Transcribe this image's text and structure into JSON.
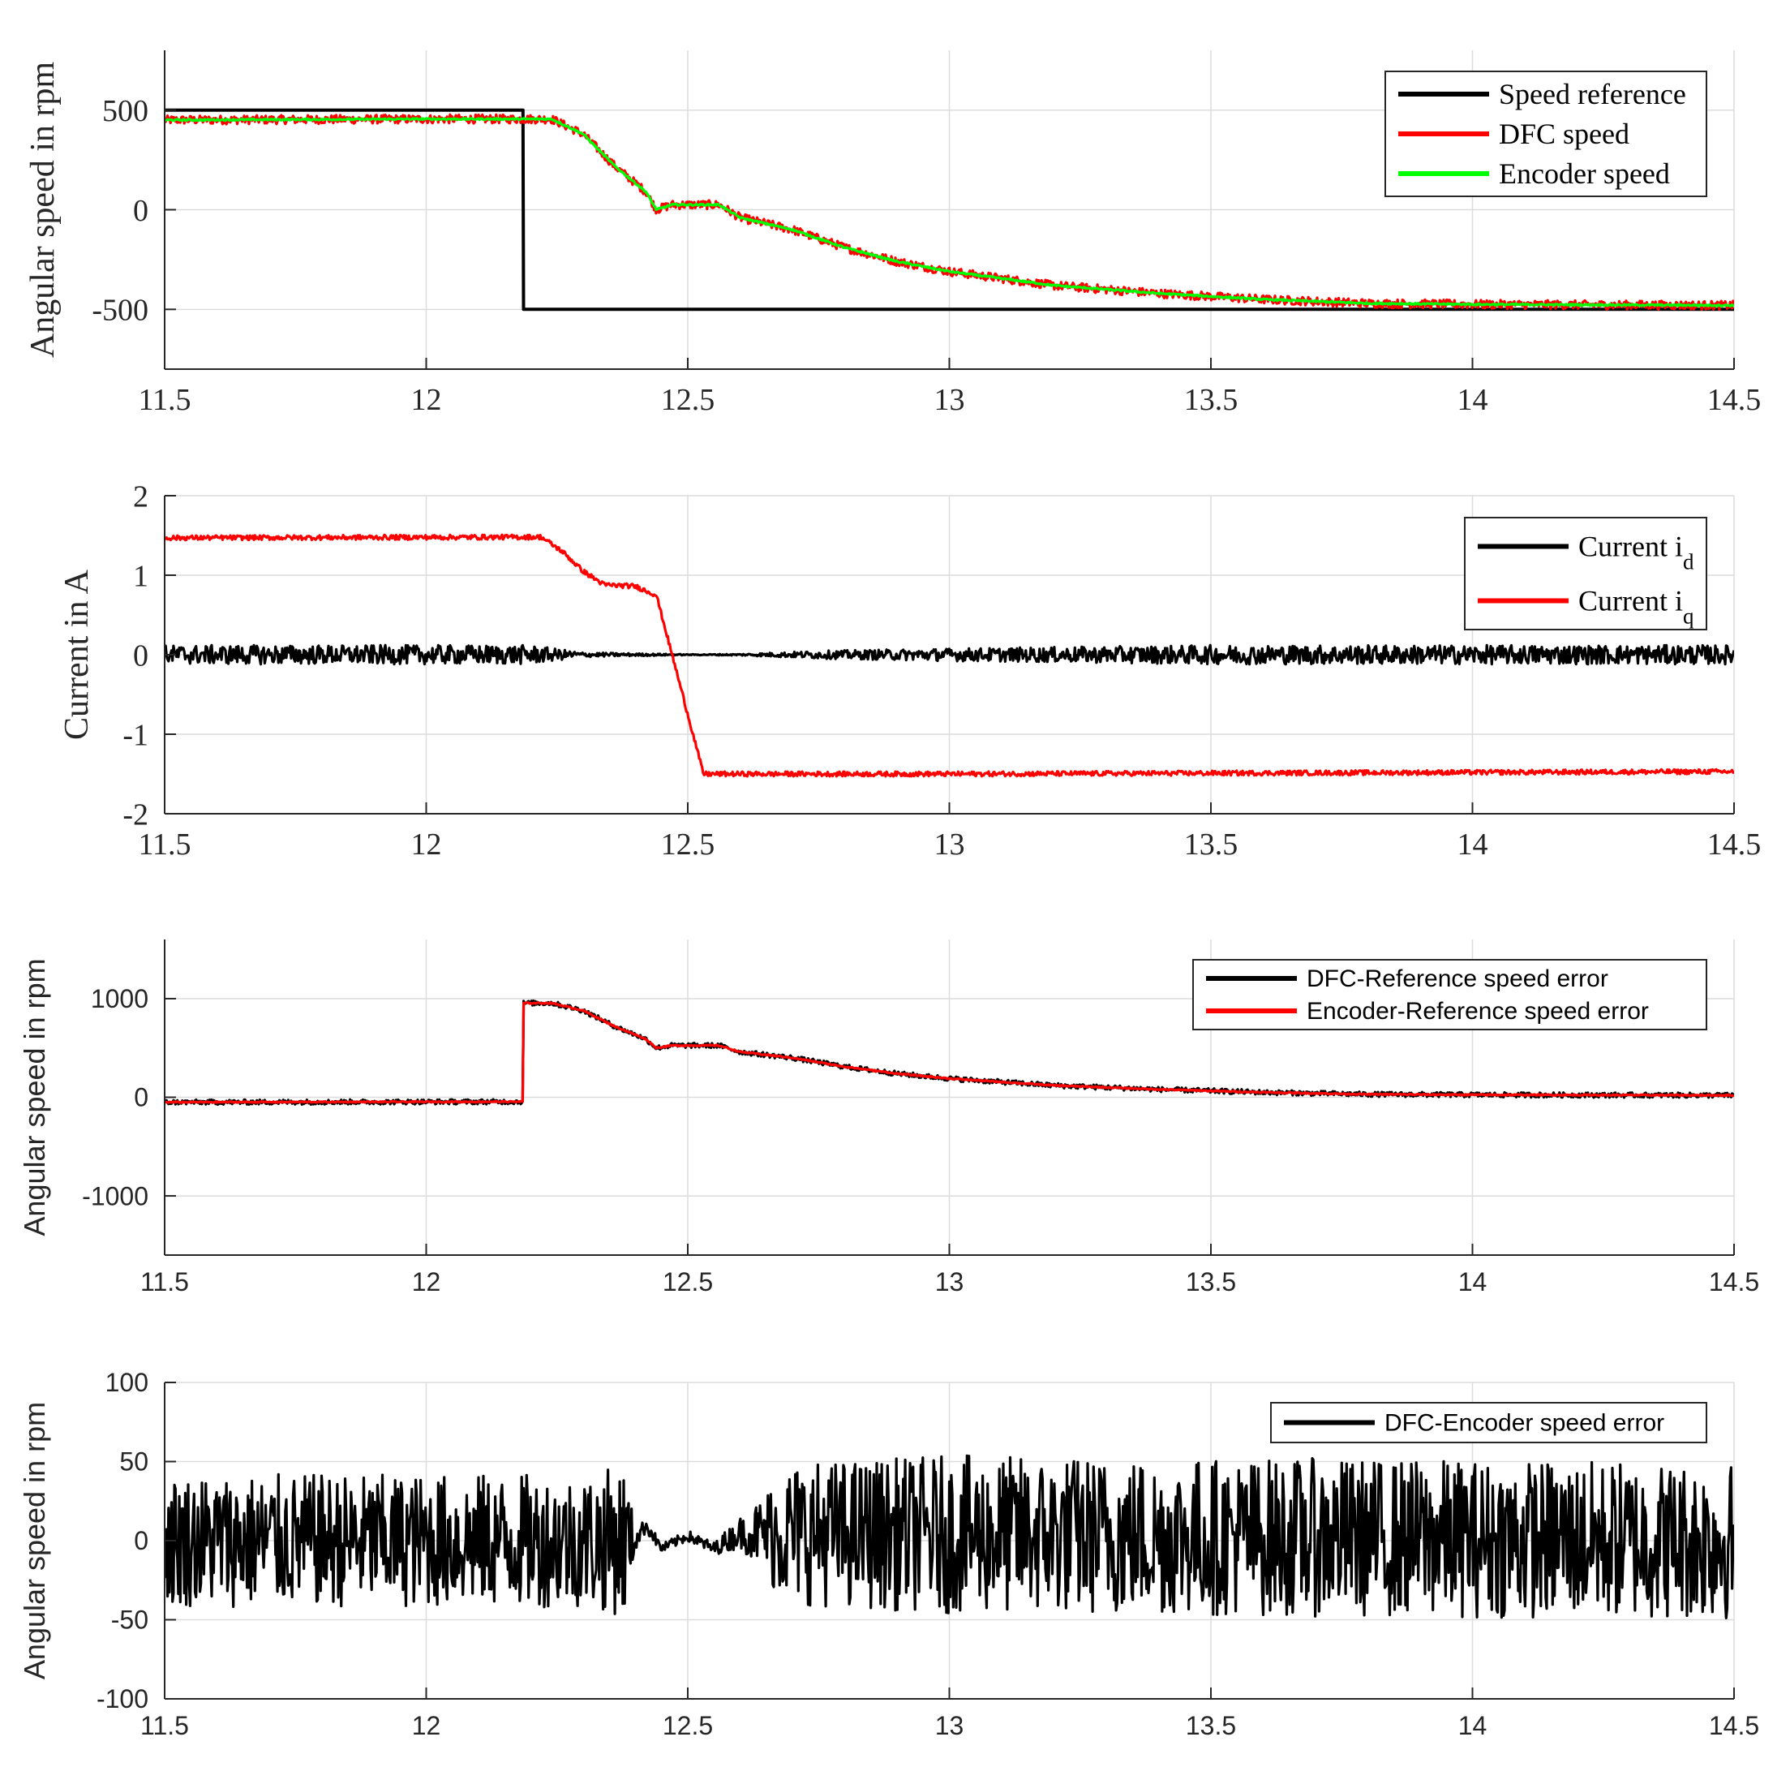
{
  "chart_data": [
    {
      "type": "line",
      "title": "",
      "xlabel": "",
      "ylabel": "Angular speed in rpm",
      "font": "serif",
      "xlim": [
        11.5,
        14.5
      ],
      "ylim": [
        -800,
        800
      ],
      "xticks": [
        11.5,
        12,
        12.5,
        13,
        13.5,
        14,
        14.5
      ],
      "xtick_labels": [
        "11.5",
        "12",
        "12.5",
        "13",
        "13.5",
        "14",
        "14.5"
      ],
      "yticks": [
        -500,
        0,
        500
      ],
      "ytick_labels": [
        "-500",
        "0",
        "500"
      ],
      "grid": true,
      "legend_position": "top-right",
      "series": [
        {
          "name": "Speed reference",
          "color": "#000000",
          "noise": 0,
          "x": [
            11.5,
            12.185,
            12.186,
            14.5
          ],
          "y": [
            500,
            500,
            -500,
            -500
          ]
        },
        {
          "name": "DFC speed",
          "color": "#ff0000",
          "noise": 22,
          "x": [
            11.5,
            12.0,
            12.24,
            12.3,
            12.36,
            12.42,
            12.44,
            12.47,
            12.56,
            12.6,
            12.7,
            12.8,
            12.9,
            13.0,
            13.2,
            13.4,
            13.6,
            13.8,
            14.0,
            14.5
          ],
          "y": [
            450,
            455,
            455,
            380,
            220,
            90,
            0,
            25,
            25,
            -40,
            -100,
            -190,
            -260,
            -310,
            -380,
            -420,
            -450,
            -470,
            -475,
            -480
          ]
        },
        {
          "name": "Encoder speed",
          "color": "#00ff00",
          "noise": 4,
          "x": [
            11.5,
            12.0,
            12.24,
            12.3,
            12.36,
            12.42,
            12.44,
            12.47,
            12.56,
            12.6,
            12.7,
            12.8,
            12.9,
            13.0,
            13.2,
            13.4,
            13.6,
            13.8,
            14.0,
            14.5
          ],
          "y": [
            450,
            455,
            455,
            380,
            220,
            90,
            0,
            25,
            25,
            -40,
            -100,
            -190,
            -260,
            -310,
            -380,
            -420,
            -450,
            -470,
            -475,
            -480
          ]
        }
      ]
    },
    {
      "type": "line",
      "title": "",
      "xlabel": "",
      "ylabel": "Current in A",
      "font": "serif",
      "xlim": [
        11.5,
        14.5
      ],
      "ylim": [
        -2,
        2
      ],
      "xticks": [
        11.5,
        12,
        12.5,
        13,
        13.5,
        14,
        14.5
      ],
      "xtick_labels": [
        "11.5",
        "12",
        "12.5",
        "13",
        "13.5",
        "14",
        "14.5"
      ],
      "yticks": [
        -2,
        -1,
        0,
        1,
        2
      ],
      "ytick_labels": [
        "-2",
        "-1",
        "0",
        "1",
        "2"
      ],
      "grid": true,
      "legend_position": "top-right",
      "series": [
        {
          "name": "Current i",
          "name_subscript": "d",
          "color": "#000000",
          "noise": 0.12,
          "noise_x": [
            11.5,
            12.2,
            12.3,
            12.5,
            12.6,
            12.75,
            13.0,
            13.5,
            14.5
          ],
          "noise_amp": [
            0.12,
            0.12,
            0.03,
            0.005,
            0.01,
            0.05,
            0.08,
            0.12,
            0.12
          ],
          "x": [
            11.5,
            14.5
          ],
          "y": [
            0,
            0
          ]
        },
        {
          "name": "Current i",
          "name_subscript": "q",
          "color": "#ff0000",
          "noise": 0.03,
          "x": [
            11.5,
            12.22,
            12.26,
            12.3,
            12.34,
            12.4,
            12.44,
            12.53,
            12.6,
            13.0,
            14.5
          ],
          "y": [
            1.47,
            1.48,
            1.3,
            1.05,
            0.88,
            0.86,
            0.75,
            -1.5,
            -1.5,
            -1.5,
            -1.47
          ]
        }
      ]
    },
    {
      "type": "line",
      "title": "",
      "xlabel": "",
      "ylabel": "Angular speed in rpm",
      "font": "sans",
      "xlim": [
        11.5,
        14.5
      ],
      "ylim": [
        -1600,
        1600
      ],
      "xticks": [
        11.5,
        12,
        12.5,
        13,
        13.5,
        14,
        14.5
      ],
      "xtick_labels": [
        "11.5",
        "12",
        "12.5",
        "13",
        "13.5",
        "14",
        "14.5"
      ],
      "yticks": [
        -1000,
        0,
        1000
      ],
      "ytick_labels": [
        "-1000",
        "0",
        "1000"
      ],
      "grid": true,
      "legend_position": "top-right",
      "series": [
        {
          "name": "DFC-Reference speed error",
          "color": "#000000",
          "noise": 25,
          "x": [
            11.5,
            12.185,
            12.186,
            12.24,
            12.3,
            12.36,
            12.42,
            12.44,
            12.47,
            12.56,
            12.6,
            12.7,
            12.8,
            12.9,
            13.0,
            13.2,
            13.4,
            13.6,
            13.8,
            14.0,
            14.5
          ],
          "y": [
            -50,
            -45,
            955,
            955,
            880,
            720,
            590,
            500,
            525,
            525,
            460,
            400,
            310,
            240,
            190,
            120,
            80,
            50,
            30,
            25,
            20
          ]
        },
        {
          "name": "Encoder-Reference speed error",
          "color": "#ff0000",
          "noise": 6,
          "x": [
            11.5,
            12.185,
            12.186,
            12.24,
            12.3,
            12.36,
            12.42,
            12.44,
            12.47,
            12.56,
            12.6,
            12.7,
            12.8,
            12.9,
            13.0,
            13.2,
            13.4,
            13.6,
            13.8,
            14.0,
            14.5
          ],
          "y": [
            -50,
            -45,
            955,
            955,
            880,
            720,
            590,
            500,
            525,
            525,
            460,
            400,
            310,
            240,
            190,
            120,
            80,
            50,
            30,
            25,
            20
          ]
        }
      ]
    },
    {
      "type": "line",
      "title": "",
      "xlabel": "",
      "ylabel": "Angular speed in rpm",
      "font": "sans",
      "xlim": [
        11.5,
        14.5
      ],
      "ylim": [
        -100,
        100
      ],
      "xticks": [
        11.5,
        12,
        12.5,
        13,
        13.5,
        14,
        14.5
      ],
      "xtick_labels": [
        "11.5",
        "12",
        "12.5",
        "13",
        "13.5",
        "14",
        "14.5"
      ],
      "yticks": [
        -100,
        -50,
        0,
        50,
        100
      ],
      "ytick_labels": [
        "-100",
        "-50",
        "0",
        "50",
        "100"
      ],
      "grid": true,
      "legend_position": "top-right",
      "series": [
        {
          "name": "DFC-Encoder speed error",
          "color": "#000000",
          "noise": 50,
          "noise_x": [
            11.5,
            12.3,
            12.38,
            12.4,
            12.45,
            12.55,
            12.6,
            12.65,
            12.66,
            12.7,
            13.0,
            14.5
          ],
          "noise_amp": [
            42,
            42,
            48,
            6,
            3,
            4,
            10,
            25,
            35,
            45,
            50,
            50
          ],
          "x": [
            11.5,
            12.4,
            12.42,
            12.45,
            12.5,
            12.55,
            12.6,
            14.5
          ],
          "y": [
            0,
            0,
            10,
            -5,
            3,
            -5,
            5,
            0
          ]
        }
      ]
    }
  ]
}
